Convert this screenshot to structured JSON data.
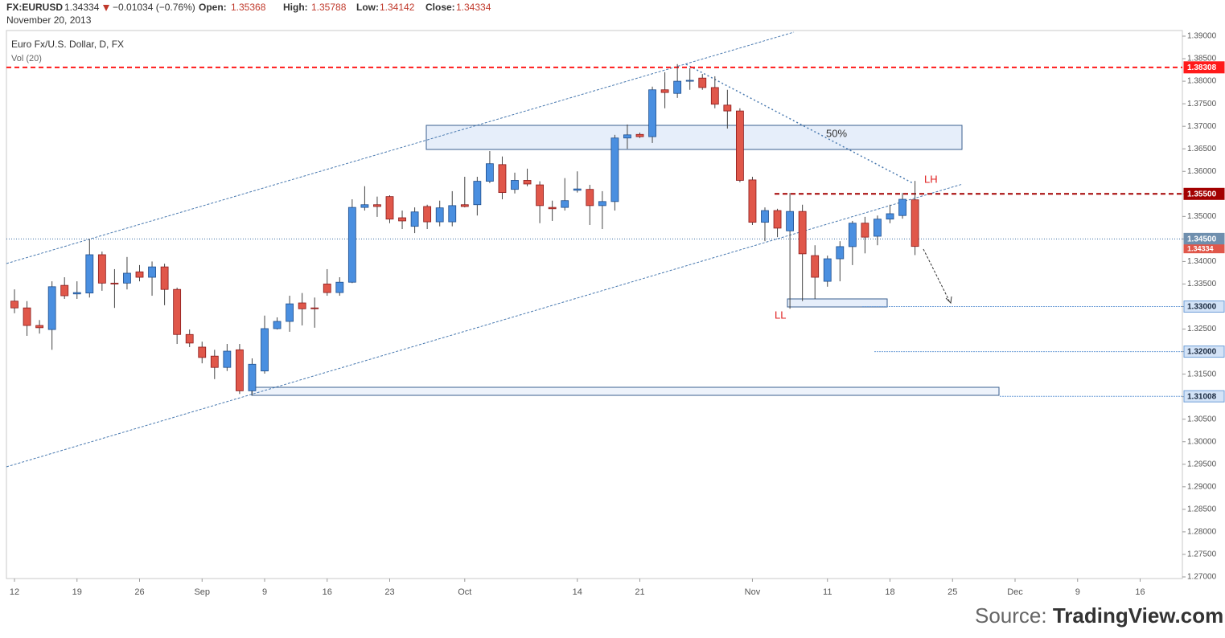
{
  "header": {
    "symbol": "FX:EURUSD",
    "change": "−0.01034 (−0.76%)",
    "open_label": "Open:",
    "high_label": "High:",
    "low_label": "Low:",
    "close_label": "Close:",
    "date": "November 20, 2013"
  },
  "source": {
    "prefix": "Source:",
    "name": "TradingView.com"
  },
  "chart_data": {
    "type": "candlestick",
    "title": "Euro Fx/U.S. Dollar, D, FX",
    "subtitle": "Vol (20)",
    "categories": [
      "12",
      null,
      null,
      null,
      null,
      "19",
      null,
      null,
      null,
      null,
      "26",
      null,
      null,
      null,
      null,
      "Sep",
      null,
      null,
      null,
      null,
      "9",
      null,
      null,
      null,
      null,
      "16",
      null,
      null,
      null,
      null,
      "23",
      null,
      null,
      null,
      null,
      null,
      "Oct",
      null,
      null,
      null,
      null,
      null,
      null,
      null,
      null,
      "14",
      null,
      null,
      null,
      null,
      "21",
      null,
      null,
      null,
      null,
      null,
      null,
      null,
      null,
      "Nov",
      null,
      null,
      null,
      null,
      null,
      "11",
      null,
      null,
      null,
      null,
      "18",
      null,
      null,
      null,
      null,
      "25",
      null,
      null,
      null,
      null,
      "Dec",
      null,
      null,
      null,
      null,
      "9",
      null,
      null,
      null,
      null,
      "16",
      null,
      null
    ],
    "open": [
      1.3312,
      1.3297,
      1.3258,
      1.3249,
      1.3347,
      1.3328,
      1.333,
      1.3415,
      1.3352,
      1.3352,
      1.3377,
      1.3365,
      1.3388,
      1.3338,
      1.3238,
      1.321,
      1.319,
      1.3165,
      1.3204,
      1.3113,
      1.3157,
      1.3251,
      1.3267,
      1.3308,
      1.3297,
      1.335,
      1.3331,
      1.3354,
      1.352,
      1.3526,
      1.3544,
      1.3497,
      1.3478,
      1.3522,
      1.3488,
      1.3488,
      1.3526,
      1.3526,
      1.3578,
      1.3615,
      1.356,
      1.358,
      1.357,
      1.352,
      1.352,
      1.3558,
      1.356,
      1.3524,
      1.3533,
      1.3674,
      1.3682,
      1.3677,
      1.3781,
      1.3773,
      1.38,
      1.3807,
      1.3786,
      1.3747,
      1.3734,
      1.3581,
      1.3487,
      1.3513,
      1.3468,
      1.3511,
      1.3413,
      1.3356,
      1.3406,
      1.3433,
      1.3485,
      1.3456,
      1.3494,
      1.3502,
      1.35368,
      null,
      null,
      null,
      null,
      null,
      null,
      null,
      null,
      null,
      null,
      null,
      null,
      null,
      null,
      null,
      null,
      null,
      null,
      null,
      null
    ],
    "high": [
      1.3338,
      1.3312,
      1.327,
      1.3356,
      1.3365,
      1.3356,
      1.345,
      1.3422,
      1.3383,
      1.341,
      1.3392,
      1.34,
      1.3395,
      1.3342,
      1.3249,
      1.3222,
      1.3204,
      1.3217,
      1.3217,
      1.3185,
      1.328,
      1.3276,
      1.3324,
      1.333,
      1.332,
      1.3383,
      1.3365,
      1.3538,
      1.3567,
      1.3544,
      1.3547,
      1.3513,
      1.352,
      1.3526,
      1.3535,
      1.3556,
      1.3588,
      1.3588,
      1.3645,
      1.3633,
      1.3597,
      1.3606,
      1.3578,
      1.3535,
      1.3585,
      1.36,
      1.357,
      1.3556,
      1.3681,
      1.3704,
      1.3686,
      1.3788,
      1.382,
      1.3838,
      1.3829,
      1.3816,
      1.3811,
      1.3781,
      1.374,
      1.3588,
      1.352,
      1.3517,
      1.3552,
      1.3526,
      1.3436,
      1.3413,
      1.3445,
      1.349,
      1.3499,
      1.3502,
      1.3526,
      1.3552,
      1.35788,
      null,
      null,
      null,
      null,
      null,
      null,
      null,
      null,
      null,
      null,
      null,
      null,
      null,
      null,
      null,
      null,
      null,
      null,
      null,
      null
    ],
    "low": [
      1.3285,
      1.3235,
      1.324,
      1.3204,
      1.3317,
      1.3317,
      1.332,
      1.3335,
      1.3297,
      1.3338,
      1.3356,
      1.3324,
      1.3303,
      1.3217,
      1.321,
      1.3174,
      1.3139,
      1.3157,
      1.3106,
      1.3103,
      1.3151,
      1.3249,
      1.3244,
      1.3258,
      1.3253,
      1.3324,
      1.3324,
      1.3352,
      1.3513,
      1.3499,
      1.3485,
      1.3472,
      1.3463,
      1.3472,
      1.3478,
      1.3478,
      1.352,
      1.3502,
      1.3574,
      1.3538,
      1.3551,
      1.3567,
      1.3485,
      1.349,
      1.3513,
      1.3553,
      1.3481,
      1.3472,
      1.3513,
      1.365,
      1.3674,
      1.3663,
      1.374,
      1.3763,
      1.3781,
      1.3781,
      1.374,
      1.3695,
      1.3576,
      1.3481,
      1.3445,
      1.3454,
      1.3295,
      1.3312,
      1.3317,
      1.3344,
      1.3356,
      1.3392,
      1.3418,
      1.3436,
      1.3485,
      1.3495,
      1.34142,
      null,
      null,
      null,
      null,
      null,
      null,
      null,
      null,
      null,
      null,
      null,
      null,
      null,
      null,
      null,
      null,
      null,
      null,
      null,
      null
    ],
    "close": [
      1.3297,
      1.3258,
      1.3253,
      1.3344,
      1.3324,
      1.3331,
      1.3415,
      1.3352,
      1.335,
      1.3374,
      1.3365,
      1.3388,
      1.3338,
      1.3238,
      1.3219,
      1.3187,
      1.3165,
      1.3201,
      1.3113,
      1.3172,
      1.3251,
      1.3267,
      1.3306,
      1.3295,
      1.3295,
      1.3331,
      1.3354,
      1.352,
      1.3526,
      1.3522,
      1.3494,
      1.349,
      1.351,
      1.3488,
      1.3519,
      1.3524,
      1.3522,
      1.3578,
      1.3617,
      1.3553,
      1.358,
      1.3572,
      1.3524,
      1.3517,
      1.3535,
      1.3561,
      1.3524,
      1.3533,
      1.3674,
      1.3681,
      1.3677,
      1.3781,
      1.3775,
      1.38,
      1.3802,
      1.3786,
      1.3749,
      1.3734,
      1.358,
      1.3487,
      1.3513,
      1.3474,
      1.3511,
      1.3417,
      1.3365,
      1.3406,
      1.3433,
      1.3485,
      1.3454,
      1.3494,
      1.3506,
      1.3538,
      1.34334,
      null,
      null,
      null,
      null,
      null,
      null,
      null,
      null,
      null,
      null,
      null,
      null,
      null,
      null,
      null,
      null,
      null,
      null,
      null,
      null
    ],
    "up_color": "#4a8fe0",
    "down_color": "#e0574a",
    "ylim": [
      1.26964,
      1.39125
    ],
    "yticks": [
      {
        "value": 1.39,
        "label": "1.39000"
      },
      {
        "value": 1.385,
        "label": "1.38500"
      },
      {
        "value": 1.38,
        "label": "1.38000"
      },
      {
        "value": 1.375,
        "label": "1.37500"
      },
      {
        "value": 1.37,
        "label": "1.37000"
      },
      {
        "value": 1.365,
        "label": "1.36500"
      },
      {
        "value": 1.36,
        "label": "1.36000"
      },
      {
        "value": 1.355,
        "label": "1.35500"
      },
      {
        "value": 1.35,
        "label": "1.35000"
      },
      {
        "value": 1.345,
        "label": "1.34500"
      },
      {
        "value": 1.34,
        "label": "1.34000"
      },
      {
        "value": 1.335,
        "label": "1.33500"
      },
      {
        "value": 1.33,
        "label": "1.33000"
      },
      {
        "value": 1.325,
        "label": "1.32500"
      },
      {
        "value": 1.32,
        "label": "1.32000"
      },
      {
        "value": 1.315,
        "label": "1.31500"
      },
      {
        "value": 1.31,
        "label": "1.31000"
      },
      {
        "value": 1.305,
        "label": "1.30500"
      },
      {
        "value": 1.3,
        "label": "1.30000"
      },
      {
        "value": 1.295,
        "label": "1.29500"
      },
      {
        "value": 1.29,
        "label": "1.29000"
      },
      {
        "value": 1.285,
        "label": "1.28500"
      },
      {
        "value": 1.28,
        "label": "1.28000"
      },
      {
        "value": 1.275,
        "label": "1.27500"
      },
      {
        "value": 1.27,
        "label": "1.27000"
      }
    ],
    "grid": false,
    "price_lines": [
      {
        "value": 1.38308,
        "color": "#ff1a1a",
        "text_color": "#ffffff"
      },
      {
        "value": 1.355,
        "label": "1.35500",
        "color": "#a30000",
        "text_color": "#ffffff"
      },
      {
        "value": 1.345,
        "label": "1.34500",
        "color": "#6f8fae",
        "text_color": "#ffffff"
      },
      {
        "value": 1.34334,
        "color": "#e0574a",
        "text_color": "#ffffff"
      },
      {
        "value": 1.33,
        "label": "1.33000",
        "color": "#d3e3f7",
        "text_color": "#1a2a40"
      },
      {
        "value": 1.32,
        "label": "1.32000",
        "color": "#d3e3f7",
        "text_color": "#1a2a40"
      },
      {
        "value": 1.31008,
        "color": "#d3e3f7",
        "text_color": "#1a2a40"
      }
    ],
    "annotations": [
      "50%",
      "LH",
      "LL"
    ]
  }
}
